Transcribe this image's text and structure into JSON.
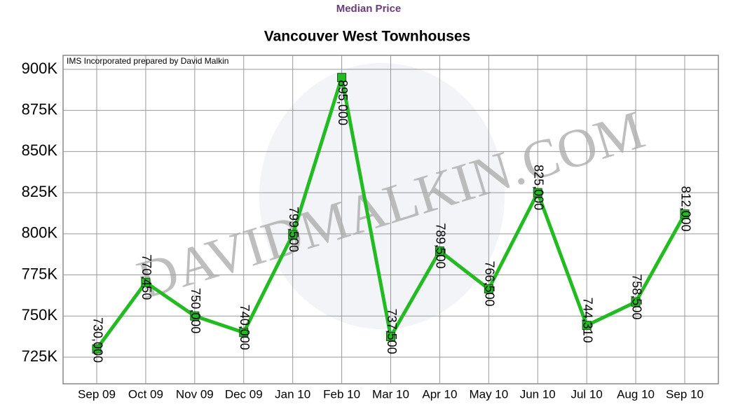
{
  "chart_data": {
    "type": "line",
    "subtitle": "Median Price",
    "title": "Vancouver West Townhouses",
    "annotation": "IMS Incorporated prepared by David Malkin",
    "watermark": "DAVIDMALKIN.COM",
    "categories": [
      "Sep 09",
      "Oct 09",
      "Nov 09",
      "Dec 09",
      "Jan 10",
      "Feb 10",
      "Mar 10",
      "Apr 10",
      "May 10",
      "Jun 10",
      "Jul 10",
      "Aug 10",
      "Sep 10"
    ],
    "series": [
      {
        "name": "Median Price",
        "color": "#22bb22",
        "values": [
          730000,
          770450,
          750000,
          740000,
          799500,
          895000,
          737500,
          789500,
          766500,
          825000,
          744310,
          758500,
          812000
        ],
        "value_labels": [
          "730,000",
          "770,450",
          "750,000",
          "740,000",
          "799,500",
          "895,000",
          "737,500",
          "789,500",
          "766,500",
          "825,000",
          "744,310",
          "758,500",
          "812,000"
        ]
      }
    ],
    "ylim": [
      708800,
      908500
    ],
    "yticks": [
      {
        "value": 725000,
        "label": "725K"
      },
      {
        "value": 750000,
        "label": "750K"
      },
      {
        "value": 775000,
        "label": "775K"
      },
      {
        "value": 800000,
        "label": "800K"
      },
      {
        "value": 825000,
        "label": "825K"
      },
      {
        "value": 850000,
        "label": "850K"
      },
      {
        "value": 875000,
        "label": "875K"
      },
      {
        "value": 900000,
        "label": "900K"
      }
    ],
    "grid": true
  }
}
